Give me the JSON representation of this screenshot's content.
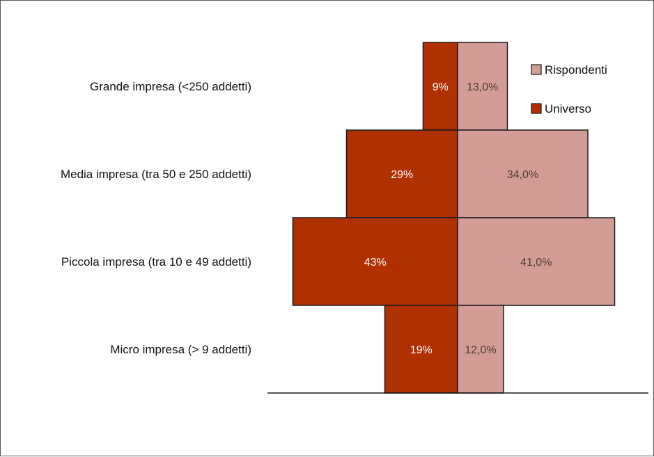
{
  "chart_data": {
    "type": "bar",
    "orientation": "horizontal-butterfly",
    "categories": [
      "Grande impresa (<250 addetti)",
      "Media impresa (tra 50 e 250 addetti)",
      "Piccola impresa (tra 10 e 49 addetti)",
      "Micro impresa (> 9 addetti)"
    ],
    "series": [
      {
        "name": "Universo",
        "values": [
          9,
          29,
          43,
          19
        ],
        "labels": [
          "9%",
          "29%",
          "43%",
          "19%"
        ],
        "color": "#B03000",
        "side": "left",
        "label_color": "#ffffff"
      },
      {
        "name": "Rispondenti",
        "values": [
          13.0,
          34.0,
          41.0,
          12.0
        ],
        "labels": [
          "13,0%",
          "34,0%",
          "41,0%",
          "12,0%"
        ],
        "color": "#D49C96",
        "side": "right",
        "label_color": "#4a3a3a"
      }
    ],
    "legend": {
      "placement": "top-right",
      "order": [
        "Rispondenti",
        "Universo"
      ]
    },
    "title": "",
    "xlabel": "",
    "ylabel": ""
  }
}
